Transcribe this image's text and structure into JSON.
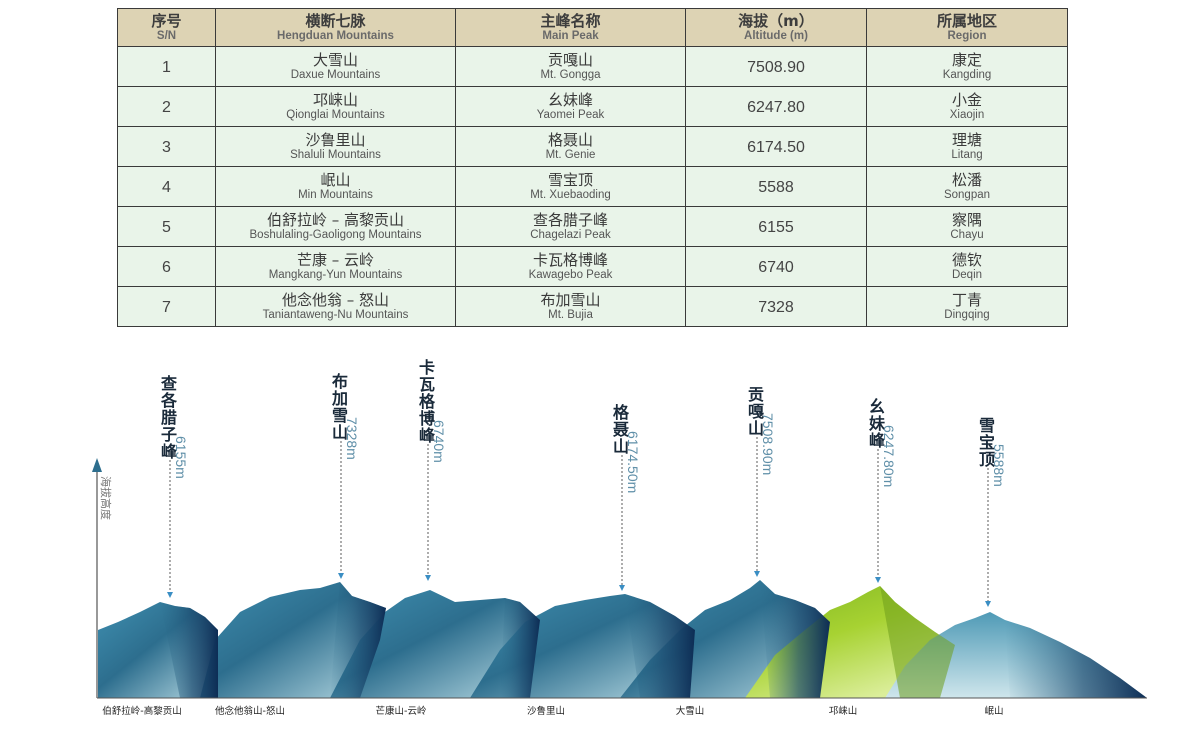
{
  "table": {
    "headers": [
      {
        "zh": "序号",
        "en": "S/N"
      },
      {
        "zh": "横断七脉",
        "en": "Hengduan Mountains"
      },
      {
        "zh": "主峰名称",
        "en": "Main Peak"
      },
      {
        "zh": "海拔（m）",
        "en": "Altitude (m)"
      },
      {
        "zh": "所属地区",
        "en": "Region"
      }
    ],
    "rows": [
      {
        "sn": "1",
        "range_zh": "大雪山",
        "range_en": "Daxue Mountains",
        "peak_zh": "贡嘎山",
        "peak_en": "Mt. Gongga",
        "altitude": "7508.90",
        "region_zh": "康定",
        "region_en": "Kangding"
      },
      {
        "sn": "2",
        "range_zh": "邛崃山",
        "range_en": "Qionglai Mountains",
        "peak_zh": "幺妹峰",
        "peak_en": "Yaomei Peak",
        "altitude": "6247.80",
        "region_zh": "小金",
        "region_en": "Xiaojin"
      },
      {
        "sn": "3",
        "range_zh": "沙鲁里山",
        "range_en": "Shaluli Mountains",
        "peak_zh": "格聂山",
        "peak_en": "Mt. Genie",
        "altitude": "6174.50",
        "region_zh": "理塘",
        "region_en": "Litang"
      },
      {
        "sn": "4",
        "range_zh": "岷山",
        "range_en": "Min Mountains",
        "peak_zh": "雪宝顶",
        "peak_en": "Mt. Xuebaoding",
        "altitude": "5588",
        "region_zh": "松潘",
        "region_en": "Songpan"
      },
      {
        "sn": "5",
        "range_zh": "伯舒拉岭 – 高黎贡山",
        "range_en": "Boshulaling-Gaoligong Mountains",
        "peak_zh": "查各腊子峰",
        "peak_en": "Chagelazi Peak",
        "altitude": "6155",
        "region_zh": "察隅",
        "region_en": "Chayu"
      },
      {
        "sn": "6",
        "range_zh": "芒康 – 云岭",
        "range_en": "Mangkang-Yun Mountains",
        "peak_zh": "卡瓦格博峰",
        "peak_en": "Kawagebo Peak",
        "altitude": "6740",
        "region_zh": "德钦",
        "region_en": "Deqin"
      },
      {
        "sn": "7",
        "range_zh": "他念他翁 – 怒山",
        "range_en": "Taniantaweng-Nu Mountains",
        "peak_zh": "布加雪山",
        "peak_en": "Mt. Bujia",
        "altitude": "7328",
        "region_zh": "丁青",
        "region_en": "Dingqing"
      }
    ]
  },
  "chart_data": {
    "type": "area",
    "ylabel": "海拔高度",
    "peaks": [
      {
        "name": "查各腊子峰",
        "altitude_label": "6155m",
        "range": "伯舒拉岭-高黎贡山"
      },
      {
        "name": "布加雪山",
        "altitude_label": "7328m",
        "range": "他念他翁山-怒山"
      },
      {
        "name": "卡瓦格博峰",
        "altitude_label": "6740m",
        "range": "芒康山-云岭"
      },
      {
        "name": "格聂山",
        "altitude_label": "6174.50m",
        "range": "沙鲁里山"
      },
      {
        "name": "贡嘎山",
        "altitude_label": "7508.90m",
        "range": "大雪山"
      },
      {
        "name": "幺妹峰",
        "altitude_label": "6247.80m",
        "range": "邛崃山"
      },
      {
        "name": "雪宝顶",
        "altitude_label": "5588m",
        "range": "岷山"
      }
    ],
    "range_labels": [
      "伯舒拉岭-高黎贡山",
      "他念他翁山-怒山",
      "芒康山-云岭",
      "沙鲁里山",
      "大雪山",
      "邛崃山",
      "岷山"
    ],
    "colors": {
      "mountain_dark": "#0d2d55",
      "mountain_mid": "#2d6e8e",
      "mountain_light": "#a8d0dc",
      "highlight_peak": "#9ccc2c",
      "label_text": "#1a2a3a",
      "altitude_text": "#5f8fa8"
    }
  }
}
